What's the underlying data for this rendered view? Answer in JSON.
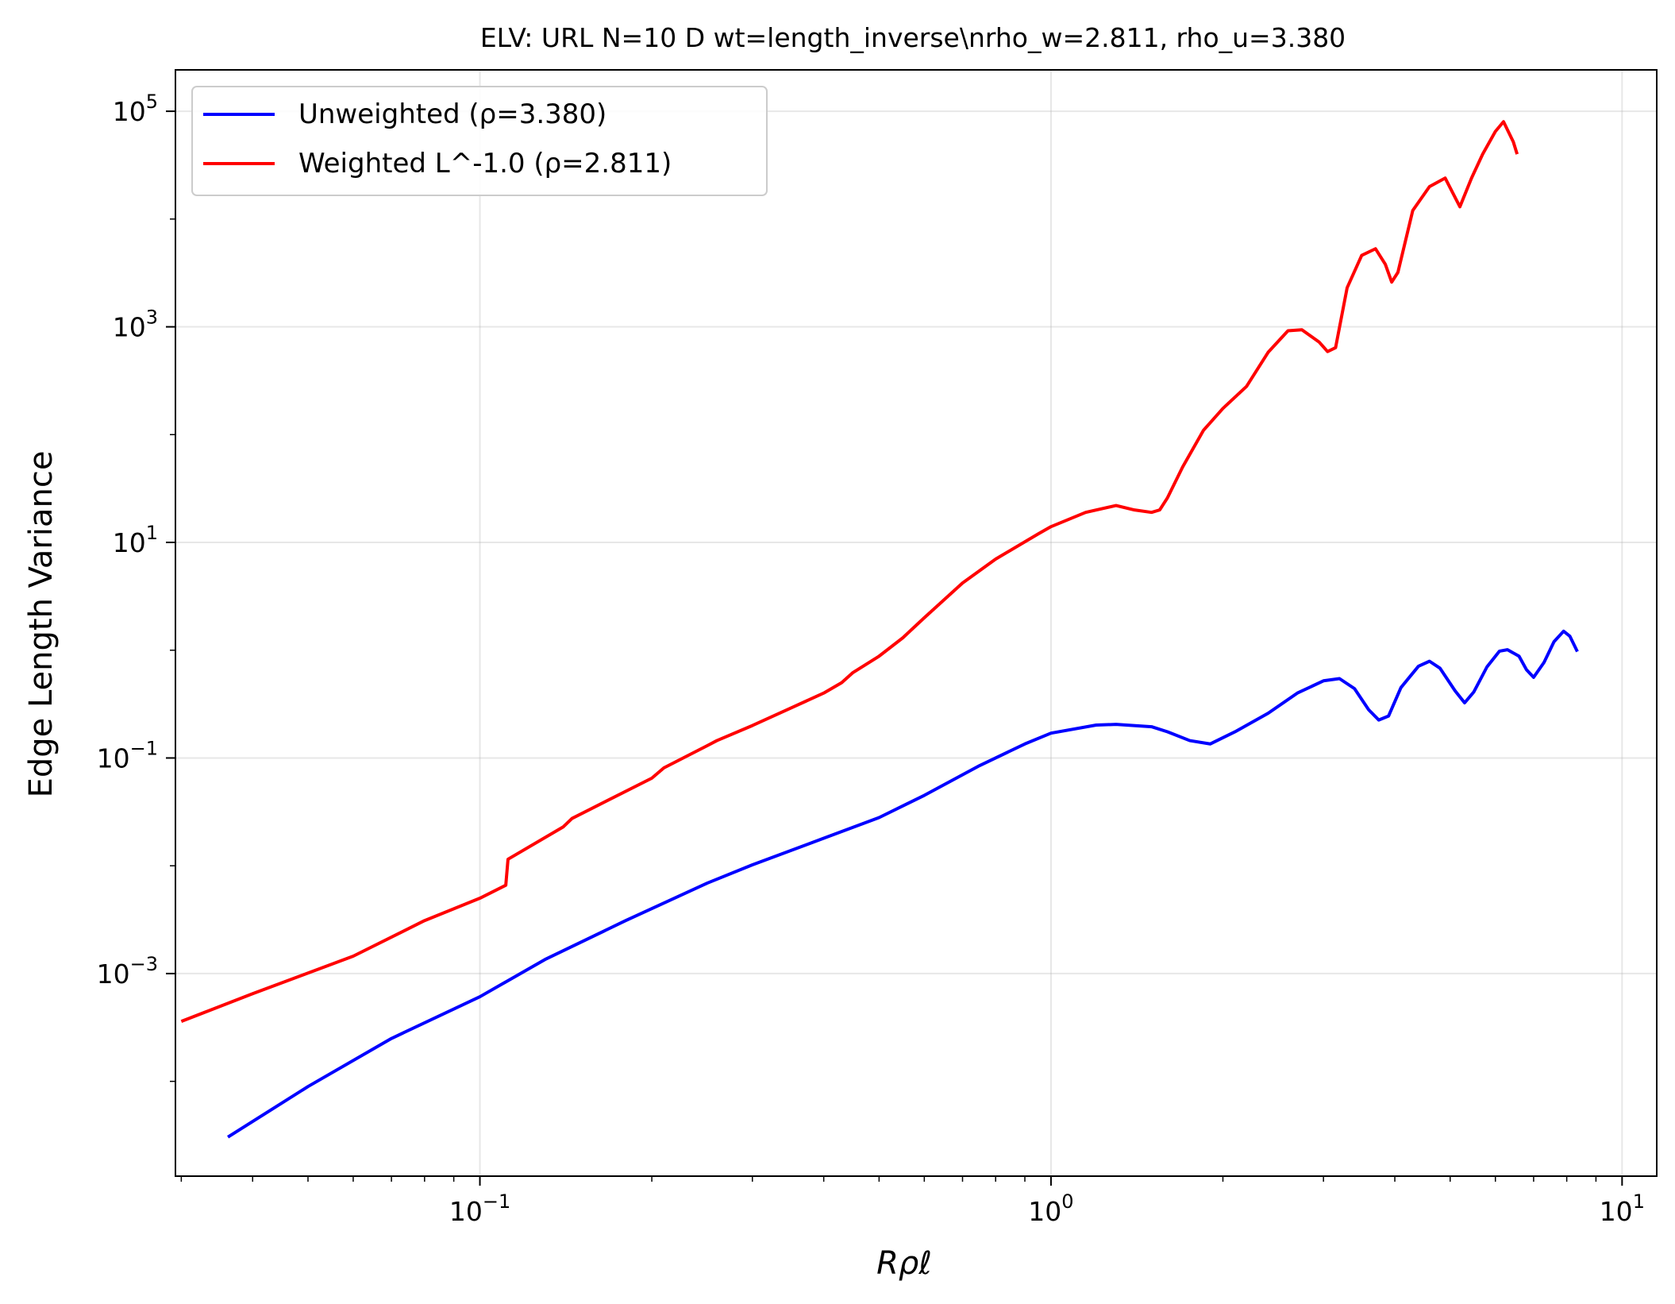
{
  "chart_data": {
    "type": "line",
    "title": "ELV: URL N=10 D wt=length_inverse\\nrho_w=2.811, rho_u=3.380",
    "xlabel": "Rρℓ",
    "ylabel": "Edge Length Variance",
    "xscale": "log",
    "yscale": "log",
    "xlim": [
      0.0293,
      11.5
    ],
    "ylim": [
      1.32e-05,
      242000
    ],
    "grid": true,
    "legend_position": "upper left",
    "x_ticks": [
      {
        "value": 0.1,
        "base": "10",
        "exp": "−1"
      },
      {
        "value": 1,
        "base": "10",
        "exp": "0"
      },
      {
        "value": 10,
        "base": "10",
        "exp": "1"
      }
    ],
    "y_ticks": [
      {
        "value": 0.001,
        "base": "10",
        "exp": "−3"
      },
      {
        "value": 0.1,
        "base": "10",
        "exp": "−1"
      },
      {
        "value": 10,
        "base": "10",
        "exp": "1"
      },
      {
        "value": 1000,
        "base": "10",
        "exp": "3"
      },
      {
        "value": 100000,
        "base": "10",
        "exp": "5"
      }
    ],
    "series": [
      {
        "name": "Unweighted (ρ=3.380)",
        "color": "#0000ff",
        "points": [
          [
            0.0362,
            3.04e-05
          ],
          [
            0.05,
            8.95e-05
          ],
          [
            0.07,
            0.00025
          ],
          [
            0.1,
            0.00061
          ],
          [
            0.13,
            0.00135
          ],
          [
            0.18,
            0.0031
          ],
          [
            0.25,
            0.0069
          ],
          [
            0.3,
            0.0102
          ],
          [
            0.4,
            0.018
          ],
          [
            0.5,
            0.028
          ],
          [
            0.6,
            0.045
          ],
          [
            0.75,
            0.085
          ],
          [
            0.9,
            0.135
          ],
          [
            1.0,
            0.17
          ],
          [
            1.2,
            0.202
          ],
          [
            1.3,
            0.205
          ],
          [
            1.5,
            0.195
          ],
          [
            1.6,
            0.175
          ],
          [
            1.75,
            0.145
          ],
          [
            1.9,
            0.135
          ],
          [
            2.1,
            0.175
          ],
          [
            2.4,
            0.26
          ],
          [
            2.7,
            0.4
          ],
          [
            3.0,
            0.52
          ],
          [
            3.2,
            0.545
          ],
          [
            3.4,
            0.44
          ],
          [
            3.6,
            0.28
          ],
          [
            3.75,
            0.225
          ],
          [
            3.9,
            0.245
          ],
          [
            4.1,
            0.45
          ],
          [
            4.4,
            0.71
          ],
          [
            4.6,
            0.79
          ],
          [
            4.8,
            0.68
          ],
          [
            5.1,
            0.42
          ],
          [
            5.3,
            0.325
          ],
          [
            5.5,
            0.41
          ],
          [
            5.8,
            0.7
          ],
          [
            6.1,
            0.98
          ],
          [
            6.3,
            1.01
          ],
          [
            6.6,
            0.88
          ],
          [
            6.8,
            0.66
          ],
          [
            7.0,
            0.56
          ],
          [
            7.3,
            0.77
          ],
          [
            7.6,
            1.2
          ],
          [
            7.9,
            1.5
          ],
          [
            8.1,
            1.35
          ],
          [
            8.35,
            0.97
          ]
        ]
      },
      {
        "name": "Weighted L^-1.0 (ρ=2.811)",
        "color": "#ff0000",
        "points": [
          [
            0.03,
            0.00036
          ],
          [
            0.04,
            0.00065
          ],
          [
            0.06,
            0.00145
          ],
          [
            0.08,
            0.0031
          ],
          [
            0.1,
            0.005
          ],
          [
            0.111,
            0.0066
          ],
          [
            0.112,
            0.0115
          ],
          [
            0.14,
            0.023
          ],
          [
            0.145,
            0.0275
          ],
          [
            0.2,
            0.065
          ],
          [
            0.21,
            0.081
          ],
          [
            0.25,
            0.13
          ],
          [
            0.26,
            0.145
          ],
          [
            0.3,
            0.2
          ],
          [
            0.4,
            0.4
          ],
          [
            0.43,
            0.5
          ],
          [
            0.45,
            0.62
          ],
          [
            0.5,
            0.88
          ],
          [
            0.55,
            1.3
          ],
          [
            0.6,
            2.0
          ],
          [
            0.7,
            4.2
          ],
          [
            0.8,
            7.0
          ],
          [
            0.95,
            12.0
          ],
          [
            1.0,
            14.0
          ],
          [
            1.15,
            19.0
          ],
          [
            1.3,
            22.0
          ],
          [
            1.4,
            20.0
          ],
          [
            1.5,
            19.0
          ],
          [
            1.55,
            20.0
          ],
          [
            1.6,
            26.0
          ],
          [
            1.7,
            50.0
          ],
          [
            1.85,
            110.0
          ],
          [
            2.0,
            175.0
          ],
          [
            2.2,
            280.0
          ],
          [
            2.4,
            580.0
          ],
          [
            2.6,
            920.0
          ],
          [
            2.75,
            940.0
          ],
          [
            2.95,
            720.0
          ],
          [
            3.05,
            590.0
          ],
          [
            3.15,
            640.0
          ],
          [
            3.3,
            2300.0
          ],
          [
            3.5,
            4600.0
          ],
          [
            3.7,
            5300.0
          ],
          [
            3.85,
            3800.0
          ],
          [
            3.95,
            2600.0
          ],
          [
            4.05,
            3200.0
          ],
          [
            4.3,
            12000.0
          ],
          [
            4.6,
            20000.0
          ],
          [
            4.9,
            24000.0
          ],
          [
            5.2,
            13000.0
          ],
          [
            5.45,
            24000.0
          ],
          [
            5.7,
            40000.0
          ],
          [
            6.0,
            65000.0
          ],
          [
            6.2,
            80000.0
          ],
          [
            6.45,
            52000.0
          ],
          [
            6.55,
            40000.0
          ]
        ]
      }
    ]
  }
}
